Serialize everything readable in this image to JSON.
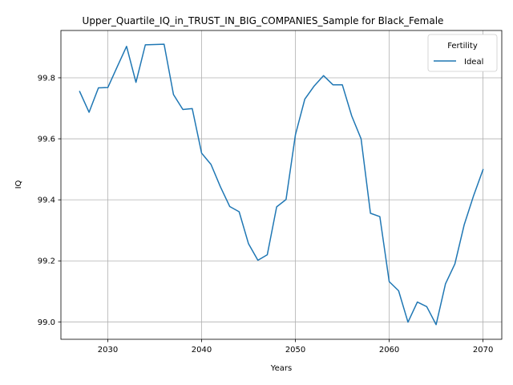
{
  "chart_data": {
    "type": "line",
    "title": "Upper_Quartile_IQ_in_TRUST_IN_BIG_COMPANIES_Sample for Black_Female",
    "xlabel": "Years",
    "ylabel": "IQ",
    "xlim": [
      2025,
      2072
    ],
    "ylim": [
      98.943,
      99.955
    ],
    "x_ticks": [
      2030,
      2040,
      2050,
      2060,
      2070
    ],
    "y_ticks": [
      99.0,
      99.2,
      99.4,
      99.6,
      99.8
    ],
    "y_tick_labels": [
      "99.0",
      "99.2",
      "99.4",
      "99.6",
      "99.8"
    ],
    "grid": true,
    "legend": {
      "title": "Fertility",
      "placement": "top-right"
    },
    "colors": {
      "series": "#1f77b4"
    },
    "x": [
      2027,
      2028,
      2029,
      2030,
      2031,
      2032,
      2033,
      2034,
      2035,
      2036,
      2037,
      2038,
      2039,
      2040,
      2041,
      2042,
      2043,
      2044,
      2045,
      2046,
      2047,
      2048,
      2049,
      2050,
      2051,
      2052,
      2053,
      2054,
      2055,
      2056,
      2057,
      2058,
      2059,
      2060,
      2061,
      2062,
      2063,
      2064,
      2065,
      2066,
      2067,
      2068,
      2069,
      2070
    ],
    "series": [
      {
        "name": "Ideal",
        "values": [
          99.755,
          99.687,
          99.767,
          99.768,
          99.836,
          99.903,
          99.785,
          99.908,
          99.909,
          99.91,
          99.745,
          99.696,
          99.699,
          99.553,
          99.516,
          99.443,
          99.378,
          99.361,
          99.256,
          99.202,
          99.22,
          99.377,
          99.401,
          99.613,
          99.73,
          99.773,
          99.807,
          99.777,
          99.777,
          99.675,
          99.6,
          99.356,
          99.345,
          99.132,
          99.102,
          98.999,
          99.065,
          99.05,
          98.991,
          99.125,
          99.19,
          99.319,
          99.414,
          99.499
        ]
      }
    ]
  }
}
